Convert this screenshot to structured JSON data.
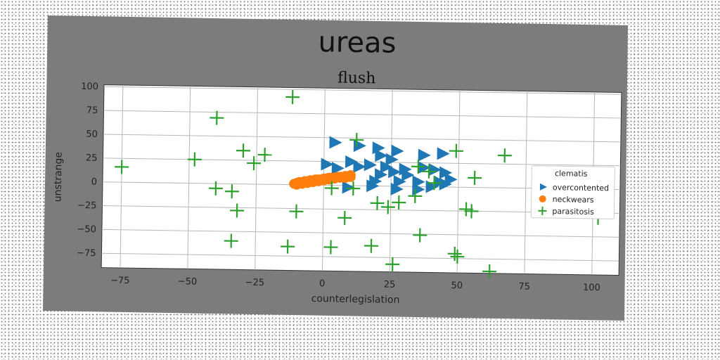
{
  "figure": {
    "title": "ureas",
    "subtitle": "flush"
  },
  "chart_data": {
    "type": "scatter",
    "title": "ureas",
    "subtitle": "flush",
    "xlabel": "counterlegislation",
    "ylabel": "unstrange",
    "xlim": [
      -82,
      110
    ],
    "ylim": [
      -90,
      102
    ],
    "xticks": [
      -75,
      -50,
      -25,
      0,
      25,
      50,
      75,
      100
    ],
    "yticks": [
      100,
      75,
      50,
      25,
      0,
      -25,
      -50,
      -75
    ],
    "xtick_labels": [
      "−75",
      "−50",
      "−25",
      "0",
      "25",
      "50",
      "75",
      "100"
    ],
    "ytick_labels": [
      "100",
      "75",
      "50",
      "25",
      "0",
      "−25",
      "−50",
      "−75"
    ],
    "grid": true,
    "legend": {
      "title": "clematis",
      "position": "right"
    },
    "series": [
      {
        "name": "overcontented",
        "marker": "triangle-right",
        "color": "#1f77b4",
        "points": [
          [
            4,
            45
          ],
          [
            13,
            42
          ],
          [
            20,
            40
          ],
          [
            27,
            37
          ],
          [
            37,
            33
          ],
          [
            44,
            35
          ],
          [
            1,
            22
          ],
          [
            5,
            18
          ],
          [
            10,
            25
          ],
          [
            17,
            22
          ],
          [
            23,
            20
          ],
          [
            30,
            18
          ],
          [
            21,
            32
          ],
          [
            25,
            28
          ],
          [
            37,
            20
          ],
          [
            41,
            18
          ],
          [
            45,
            15
          ],
          [
            13,
            20
          ],
          [
            21,
            12
          ],
          [
            26,
            15
          ],
          [
            31,
            12
          ],
          [
            19,
            5
          ],
          [
            28,
            5
          ],
          [
            35,
            5
          ],
          [
            43,
            5
          ],
          [
            47,
            8
          ],
          [
            9,
            -2
          ],
          [
            18,
            0
          ],
          [
            27,
            -3
          ],
          [
            35,
            -3
          ],
          [
            40,
            0
          ],
          [
            45,
            3
          ]
        ]
      },
      {
        "name": "neckwears",
        "marker": "circle",
        "color": "#ff7f0e",
        "points": [
          [
            -11,
            1
          ],
          [
            -10,
            2
          ],
          [
            -9,
            3
          ],
          [
            -8,
            3
          ],
          [
            -7,
            4
          ],
          [
            -6,
            4
          ],
          [
            -5,
            5
          ],
          [
            -4,
            5
          ],
          [
            -3,
            6
          ],
          [
            -2,
            6
          ],
          [
            -1,
            6
          ],
          [
            0,
            7
          ],
          [
            1,
            7
          ],
          [
            2,
            8
          ],
          [
            3,
            8
          ],
          [
            4,
            8
          ],
          [
            5,
            9
          ],
          [
            6,
            9
          ],
          [
            7,
            9
          ],
          [
            8,
            10
          ],
          [
            9,
            10
          ],
          [
            10,
            11
          ],
          [
            -10,
            0
          ],
          [
            -8,
            1
          ],
          [
            -6,
            2
          ],
          [
            -4,
            3
          ],
          [
            -2,
            4
          ],
          [
            0,
            5
          ],
          [
            2,
            6
          ],
          [
            4,
            7
          ],
          [
            6,
            8
          ],
          [
            8,
            8
          ],
          [
            10,
            9
          ]
        ]
      },
      {
        "name": "parasitosis",
        "marker": "plus",
        "color": "#2ca02c",
        "points": [
          [
            -12,
            92
          ],
          [
            -40,
            69
          ],
          [
            12,
            48
          ],
          [
            49,
            38
          ],
          [
            67,
            34
          ],
          [
            -30,
            35
          ],
          [
            -22,
            31
          ],
          [
            -48,
            25
          ],
          [
            -26,
            22
          ],
          [
            -75,
            16
          ],
          [
            35,
            21
          ],
          [
            39,
            16
          ],
          [
            56,
            10
          ],
          [
            41,
            4
          ],
          [
            -40,
            -5
          ],
          [
            -34,
            -8
          ],
          [
            3,
            -3
          ],
          [
            11,
            -3
          ],
          [
            20,
            -18
          ],
          [
            24,
            -22
          ],
          [
            28,
            -17
          ],
          [
            34,
            -10
          ],
          [
            -32,
            -28
          ],
          [
            -10,
            -28
          ],
          [
            8,
            -34
          ],
          [
            53,
            -23
          ],
          [
            55,
            -25
          ],
          [
            102,
            -30
          ],
          [
            36,
            -51
          ],
          [
            -34,
            -60
          ],
          [
            -13,
            -65
          ],
          [
            3,
            -65
          ],
          [
            18,
            -63
          ],
          [
            49,
            -70
          ],
          [
            50,
            -73
          ],
          [
            26,
            -82
          ],
          [
            62,
            -88
          ]
        ]
      }
    ]
  }
}
